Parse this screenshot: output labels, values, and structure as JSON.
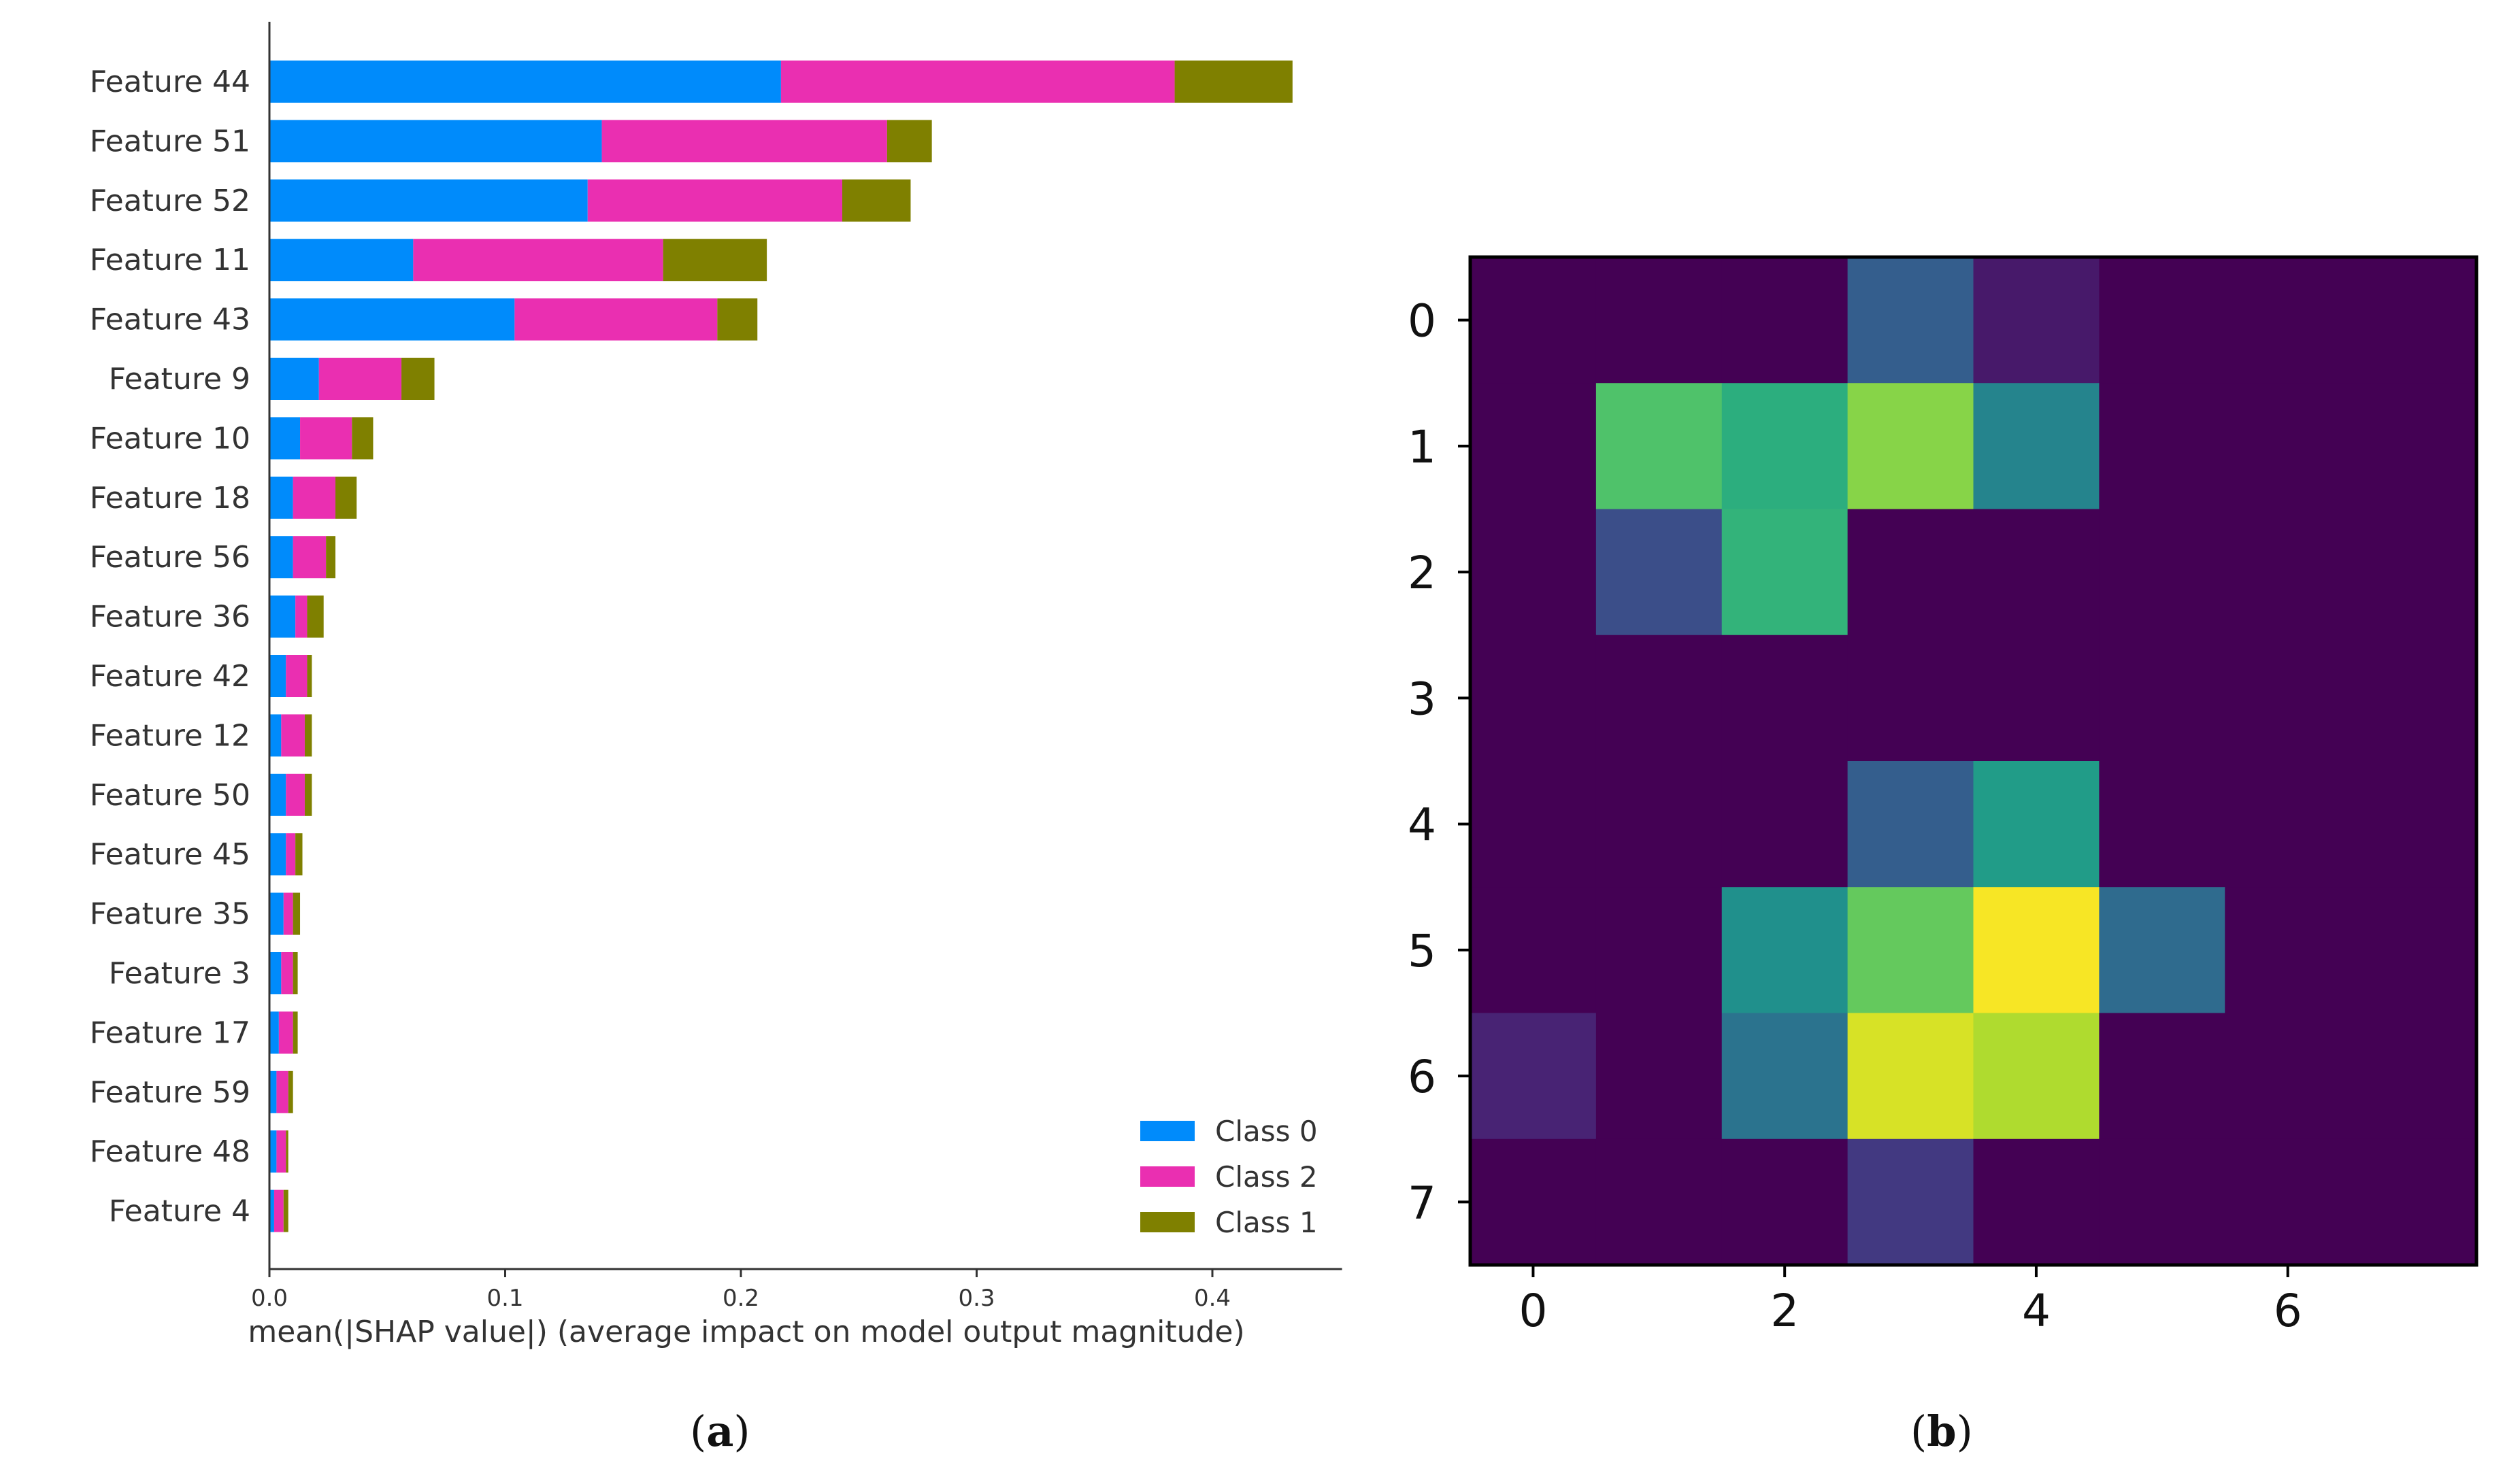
{
  "chart_data": [
    {
      "type": "bar",
      "stacked": true,
      "orientation": "horizontal",
      "panel_label_prefix": "(",
      "panel_label_letter": "a",
      "panel_label_suffix": ")",
      "title": "",
      "xlabel": "mean(|SHAP value|) (average impact on model output magnitude)",
      "ylabel": "",
      "xlim": [
        0,
        0.455
      ],
      "xticks": [
        0.0,
        0.1,
        0.2,
        0.3,
        0.4
      ],
      "xtick_labels": [
        "0.0",
        "0.1",
        "0.2",
        "0.3",
        "0.4"
      ],
      "legend_position": "lower-right",
      "categories": [
        "Feature 44",
        "Feature 51",
        "Feature 52",
        "Feature 11",
        "Feature 43",
        "Feature 9",
        "Feature 10",
        "Feature 18",
        "Feature 56",
        "Feature 36",
        "Feature 42",
        "Feature 12",
        "Feature 50",
        "Feature 45",
        "Feature 35",
        "Feature 3",
        "Feature 17",
        "Feature 59",
        "Feature 48",
        "Feature 4"
      ],
      "series": [
        {
          "name": "Class 0",
          "color": "#008bfb",
          "values": [
            0.217,
            0.141,
            0.135,
            0.061,
            0.104,
            0.021,
            0.013,
            0.01,
            0.01,
            0.011,
            0.007,
            0.005,
            0.007,
            0.007,
            0.006,
            0.005,
            0.004,
            0.003,
            0.003,
            0.002
          ]
        },
        {
          "name": "Class 2",
          "color": "#ea2fb1",
          "values": [
            0.167,
            0.121,
            0.108,
            0.106,
            0.086,
            0.035,
            0.022,
            0.018,
            0.014,
            0.005,
            0.009,
            0.01,
            0.008,
            0.004,
            0.004,
            0.005,
            0.006,
            0.005,
            0.004,
            0.004
          ]
        },
        {
          "name": "Class 1",
          "color": "#7f8000",
          "values": [
            0.05,
            0.019,
            0.029,
            0.044,
            0.017,
            0.014,
            0.009,
            0.009,
            0.004,
            0.007,
            0.002,
            0.003,
            0.003,
            0.003,
            0.003,
            0.002,
            0.002,
            0.002,
            0.001,
            0.002
          ]
        }
      ]
    },
    {
      "type": "heatmap",
      "panel_label_prefix": "(",
      "panel_label_letter": "b",
      "panel_label_suffix": ")",
      "title": "",
      "colormap": "viridis",
      "xlim": [
        -0.5,
        7.5
      ],
      "ylim": [
        7.5,
        -0.5
      ],
      "xticks": [
        0,
        2,
        4,
        6
      ],
      "xtick_labels": [
        "0",
        "2",
        "4",
        "6"
      ],
      "yticks": [
        0,
        1,
        2,
        3,
        4,
        5,
        6,
        7
      ],
      "ytick_labels": [
        "0",
        "1",
        "2",
        "3",
        "4",
        "5",
        "6",
        "7"
      ],
      "values": [
        [
          0.0,
          0.0,
          0.0,
          0.3,
          0.07,
          0.0,
          0.0,
          0.0
        ],
        [
          0.0,
          0.72,
          0.63,
          0.82,
          0.45,
          0.0,
          0.0,
          0.0
        ],
        [
          0.0,
          0.24,
          0.65,
          0.0,
          0.0,
          0.0,
          0.0,
          0.0
        ],
        [
          0.0,
          0.0,
          0.0,
          0.0,
          0.0,
          0.0,
          0.0,
          0.0
        ],
        [
          0.0,
          0.0,
          0.0,
          0.3,
          0.55,
          0.0,
          0.0,
          0.0
        ],
        [
          0.0,
          0.0,
          0.5,
          0.76,
          0.99,
          0.35,
          0.0,
          0.0
        ],
        [
          0.1,
          0.0,
          0.38,
          0.94,
          0.88,
          0.0,
          0.0,
          0.0
        ],
        [
          0.0,
          0.0,
          0.0,
          0.17,
          0.0,
          0.0,
          0.0,
          0.0
        ]
      ]
    }
  ]
}
